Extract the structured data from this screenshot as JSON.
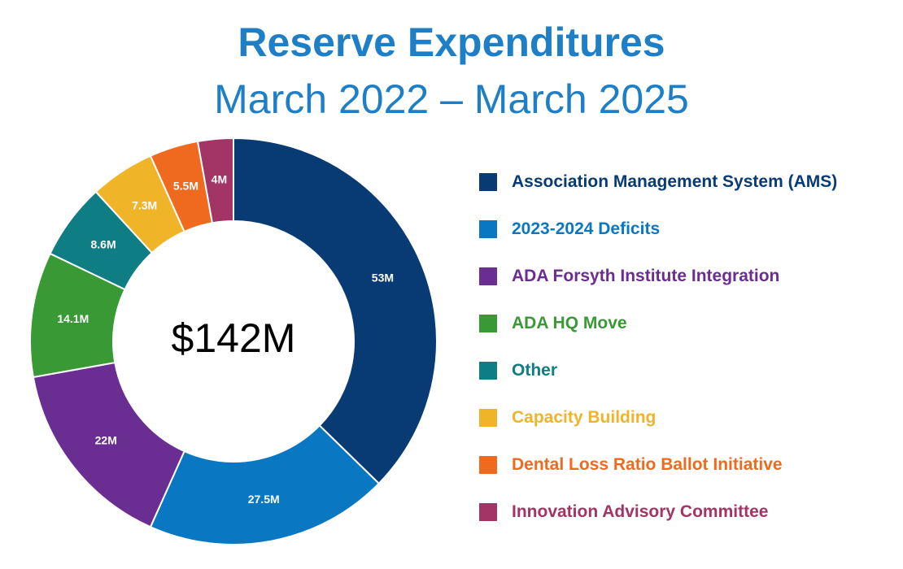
{
  "chart_data": {
    "type": "pie",
    "title": "Reserve Expenditures",
    "subtitle": "March 2022 – March 2025",
    "center_label": "$142M",
    "donut": true,
    "legend_position": "right",
    "slices": [
      {
        "label": "Association Management System (AMS)",
        "value": 53,
        "display": "53M",
        "color": "#083b73"
      },
      {
        "label": "2023-2024 Deficits",
        "value": 27.5,
        "display": "27.5M",
        "color": "#0a77c2"
      },
      {
        "label": "ADA Forsyth Institute Integration",
        "value": 22,
        "display": "22M",
        "color": "#6a2d91"
      },
      {
        "label": "ADA HQ Move",
        "value": 14.1,
        "display": "14.1M",
        "color": "#399a35"
      },
      {
        "label": "Other",
        "value": 8.6,
        "display": "8.6M",
        "color": "#0f7d84"
      },
      {
        "label": "Capacity Building",
        "value": 7.3,
        "display": "7.3M",
        "color": "#f0b428"
      },
      {
        "label": "Dental Loss Ratio Ballot Initiative",
        "value": 5.5,
        "display": "5.5M",
        "color": "#ef6a1f"
      },
      {
        "label": "Innovation Advisory Committee",
        "value": 4,
        "display": "4M",
        "color": "#a33466"
      }
    ]
  }
}
